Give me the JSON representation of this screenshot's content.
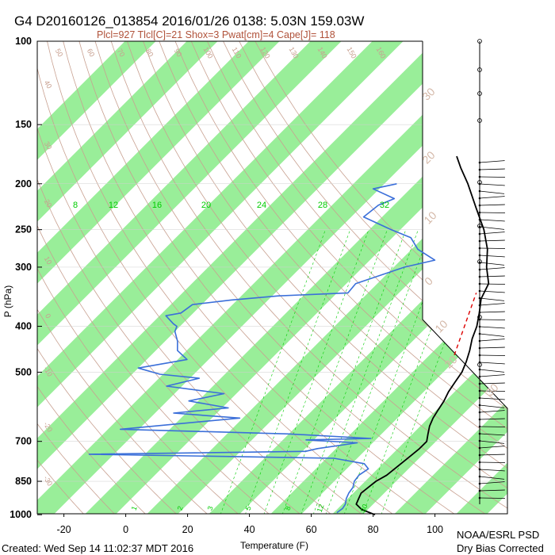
{
  "header": {
    "title": "G4 D20160126_013854 2016/01/26 0138:  5.03N 159.03W",
    "subtitle": "Plcl=927 Tlcl[C]=21 Shox=3 Pwat[cm]=4 Cape[J]= 118"
  },
  "footer": {
    "created": "Created: Wed Sep 14 11:02:37 MDT 2016",
    "credit1": "NOAA/ESRL PSD",
    "credit2": "Dry Bias Corrected"
  },
  "colors": {
    "band": "#99ee99",
    "temperature": "#000000",
    "dewpoint": "#3b6fd9",
    "parcel": "#dd0000",
    "adiabat": "#c8a090",
    "mixing_ratio": "#00cc00"
  },
  "chart_data": {
    "type": "skew-t",
    "xlabel": "Temperature (F)",
    "ylabel": "P (hPa)",
    "x_ticks": [
      "-20",
      "0",
      "20",
      "40",
      "60",
      "80",
      "100"
    ],
    "y_ticks": [
      "100",
      "150",
      "200",
      "250",
      "300",
      "400",
      "500",
      "700",
      "850",
      "1000"
    ],
    "mixing_ratio_labels": [
      "8",
      "12",
      "16",
      "20",
      "24",
      "28",
      "32"
    ],
    "mixing_ratio_dashed_labels": [
      "1",
      "2",
      "3",
      "5",
      "8",
      "12",
      "20"
    ],
    "dry_adiabat_labels": [
      "50",
      "60",
      "70",
      "80",
      "90",
      "100",
      "110",
      "120",
      "130",
      "140",
      "150",
      "160"
    ],
    "moist_adiabat_labels": [
      "30",
      "20",
      "10",
      "0",
      "10",
      "20",
      "30"
    ],
    "left_edge_labels": [
      "40",
      "30",
      "20",
      "10",
      "0",
      "-10",
      "-20",
      "-30"
    ],
    "temperature": [
      [
        1000,
        84
      ],
      [
        975,
        78
      ],
      [
        950,
        74.5
      ],
      [
        925,
        73.5
      ],
      [
        900,
        72.5
      ],
      [
        875,
        73
      ],
      [
        850,
        73.5
      ],
      [
        825,
        75
      ],
      [
        800,
        75.5
      ],
      [
        775,
        76
      ],
      [
        750,
        76.5
      ],
      [
        725,
        77
      ],
      [
        700,
        77
      ],
      [
        675,
        75
      ],
      [
        650,
        73
      ],
      [
        625,
        71.5
      ],
      [
        600,
        70.5
      ],
      [
        575,
        69.5
      ],
      [
        550,
        68
      ],
      [
        525,
        67
      ],
      [
        500,
        66
      ],
      [
        475,
        64
      ],
      [
        450,
        61.5
      ],
      [
        425,
        58.5
      ],
      [
        400,
        56
      ],
      [
        375,
        52.5
      ],
      [
        350,
        48.5
      ],
      [
        340,
        47.5
      ],
      [
        325,
        46
      ],
      [
        300,
        40
      ],
      [
        275,
        34.5
      ],
      [
        250,
        27
      ],
      [
        225,
        17.5
      ],
      [
        200,
        7
      ],
      [
        185,
        -0.5
      ],
      [
        175,
        -5.5
      ]
    ],
    "dewpoint": [
      [
        990,
        71
      ],
      [
        970,
        71.5
      ],
      [
        950,
        71
      ],
      [
        925,
        69.5
      ],
      [
        900,
        68.5
      ],
      [
        875,
        68
      ],
      [
        850,
        66.5
      ],
      [
        825,
        66
      ],
      [
        800,
        67
      ],
      [
        780,
        64
      ],
      [
        760,
        52.5
      ],
      [
        745,
        -28
      ],
      [
        735,
        41
      ],
      [
        725,
        44
      ],
      [
        705,
        55
      ],
      [
        695,
        37.5
      ],
      [
        690,
        58
      ],
      [
        675,
        30
      ],
      [
        660,
        -26
      ],
      [
        625,
        9
      ],
      [
        610,
        -14
      ],
      [
        595,
        2
      ],
      [
        575,
        -13
      ],
      [
        555,
        -4
      ],
      [
        535,
        -25
      ],
      [
        515,
        -17
      ],
      [
        505,
        -31
      ],
      [
        490,
        -40
      ],
      [
        470,
        -27
      ],
      [
        450,
        -33
      ],
      [
        430,
        -36
      ],
      [
        410,
        -40
      ],
      [
        400,
        -41
      ],
      [
        395,
        -43
      ],
      [
        380,
        -48
      ],
      [
        375,
        -44
      ],
      [
        360,
        -43
      ],
      [
        352,
        -32
      ],
      [
        345,
        -18
      ],
      [
        340,
        3.5
      ],
      [
        325,
        3
      ],
      [
        300,
        13.5
      ],
      [
        290,
        21
      ],
      [
        275,
        12
      ],
      [
        260,
        6
      ],
      [
        250,
        -3
      ],
      [
        235,
        -16
      ],
      [
        222,
        -15
      ],
      [
        215,
        -12
      ],
      [
        205,
        -22
      ],
      [
        200,
        -16
      ]
    ],
    "parcel": [
      [
        460,
        58
      ],
      [
        340,
        45
      ]
    ]
  }
}
